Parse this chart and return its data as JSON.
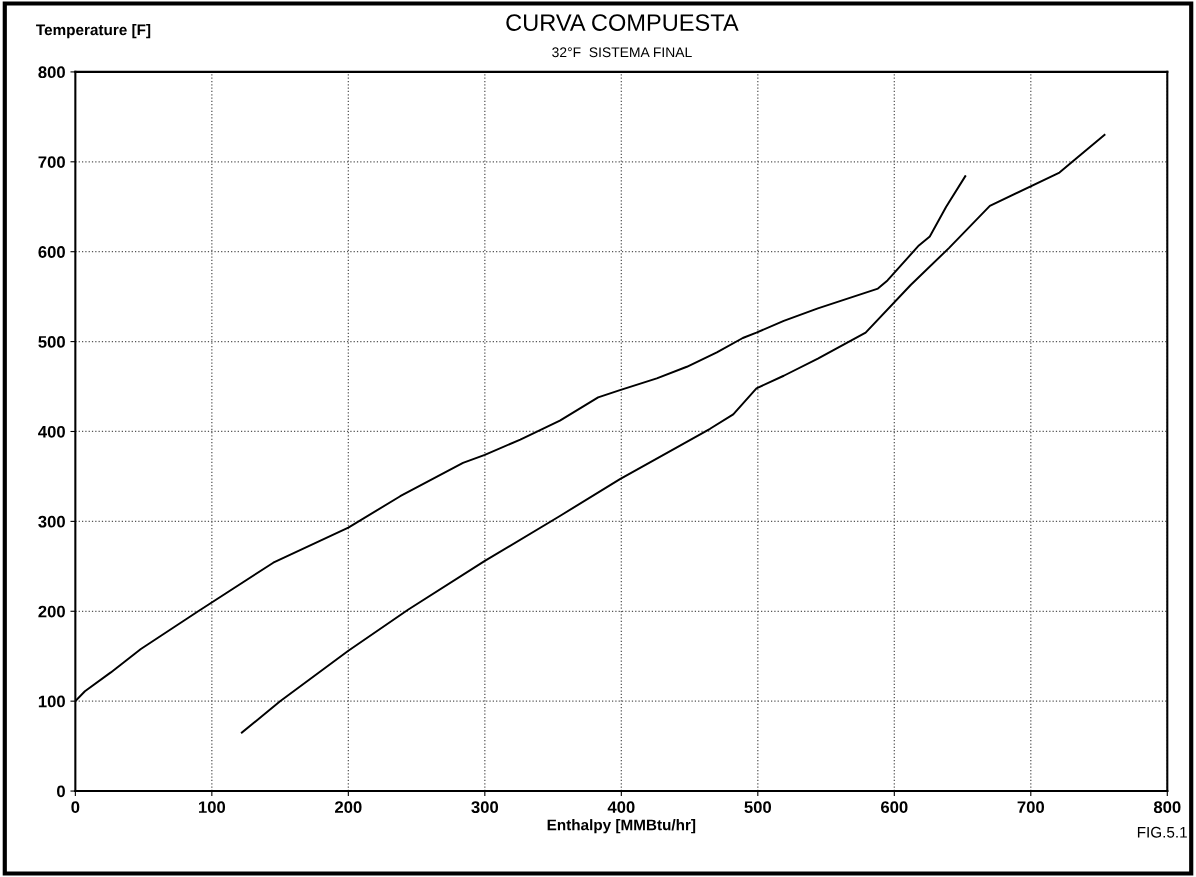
{
  "chart_data": {
    "type": "line",
    "title": "CURVA COMPUESTA",
    "subtitle": "32°F  SISTEMA FINAL",
    "xlabel": "Enthalpy [MMBtu/hr]",
    "ylabel": "Temperature [F]",
    "annotations": [
      "FIG.5.1"
    ],
    "xlim": [
      0,
      800
    ],
    "ylim": [
      0,
      800
    ],
    "xticks": [
      0,
      100,
      200,
      300,
      400,
      500,
      600,
      700,
      800
    ],
    "yticks": [
      0,
      100,
      200,
      300,
      400,
      500,
      600,
      700,
      800
    ],
    "grid": true,
    "line_style": "solid",
    "marker": "none",
    "legend": false,
    "series": [
      {
        "color": "#000000",
        "x": [
          0,
          7,
          26,
          48,
          90,
          145,
          200,
          238,
          284,
          300,
          326,
          355,
          383,
          399,
          426,
          448,
          470,
          489,
          499,
          519,
          544,
          588,
          595,
          618,
          626,
          638,
          652
        ],
        "values": [
          100,
          111,
          132,
          158,
          200,
          254,
          293,
          328,
          365,
          374,
          391,
          412,
          438,
          446,
          459,
          472,
          488,
          504,
          510,
          523,
          537,
          559,
          568,
          607,
          617,
          650,
          684
        ]
      },
      {
        "color": "#000000",
        "x": [
          122,
          150,
          200,
          244,
          300,
          355,
          399,
          445,
          465,
          482,
          499,
          519,
          544,
          579,
          612,
          640,
          670,
          721,
          735,
          754
        ],
        "values": [
          65,
          100,
          156,
          202,
          256,
          306,
          347,
          386,
          403,
          419,
          448,
          462,
          481,
          510,
          563,
          604,
          651,
          688,
          706,
          730
        ]
      }
    ]
  }
}
